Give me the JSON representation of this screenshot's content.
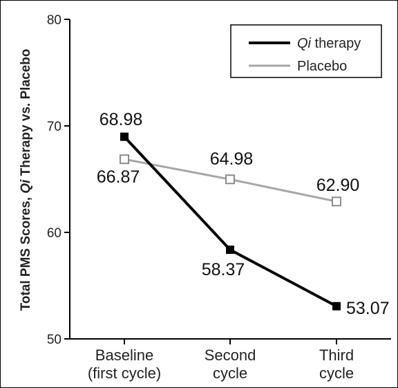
{
  "chart_data": {
    "type": "line",
    "categories": [
      [
        "Baseline",
        "(first cycle)"
      ],
      [
        "Second",
        "cycle"
      ],
      [
        "Third",
        "cycle"
      ]
    ],
    "ylabel": {
      "before": "Total PMS Scores, ",
      "italic": "Qi",
      "after": " Therapy vs. Placebo"
    },
    "ylim": [
      50,
      80
    ],
    "yticks": [
      50,
      60,
      70,
      80
    ],
    "legend_position": "top-right",
    "grid": false,
    "series": [
      {
        "name_italic": "Qi",
        "name_rest": " therapy",
        "values": [
          68.98,
          58.37,
          53.07
        ],
        "labels": [
          "68.98",
          "58.37",
          "53.07"
        ],
        "color": "#000000",
        "marker": "filled-square"
      },
      {
        "name": "Placebo",
        "values": [
          66.87,
          64.98,
          62.9
        ],
        "labels": [
          "66.87",
          "64.98",
          "62.90"
        ],
        "color": "#a6a6a6",
        "marker": "open-square"
      }
    ]
  }
}
